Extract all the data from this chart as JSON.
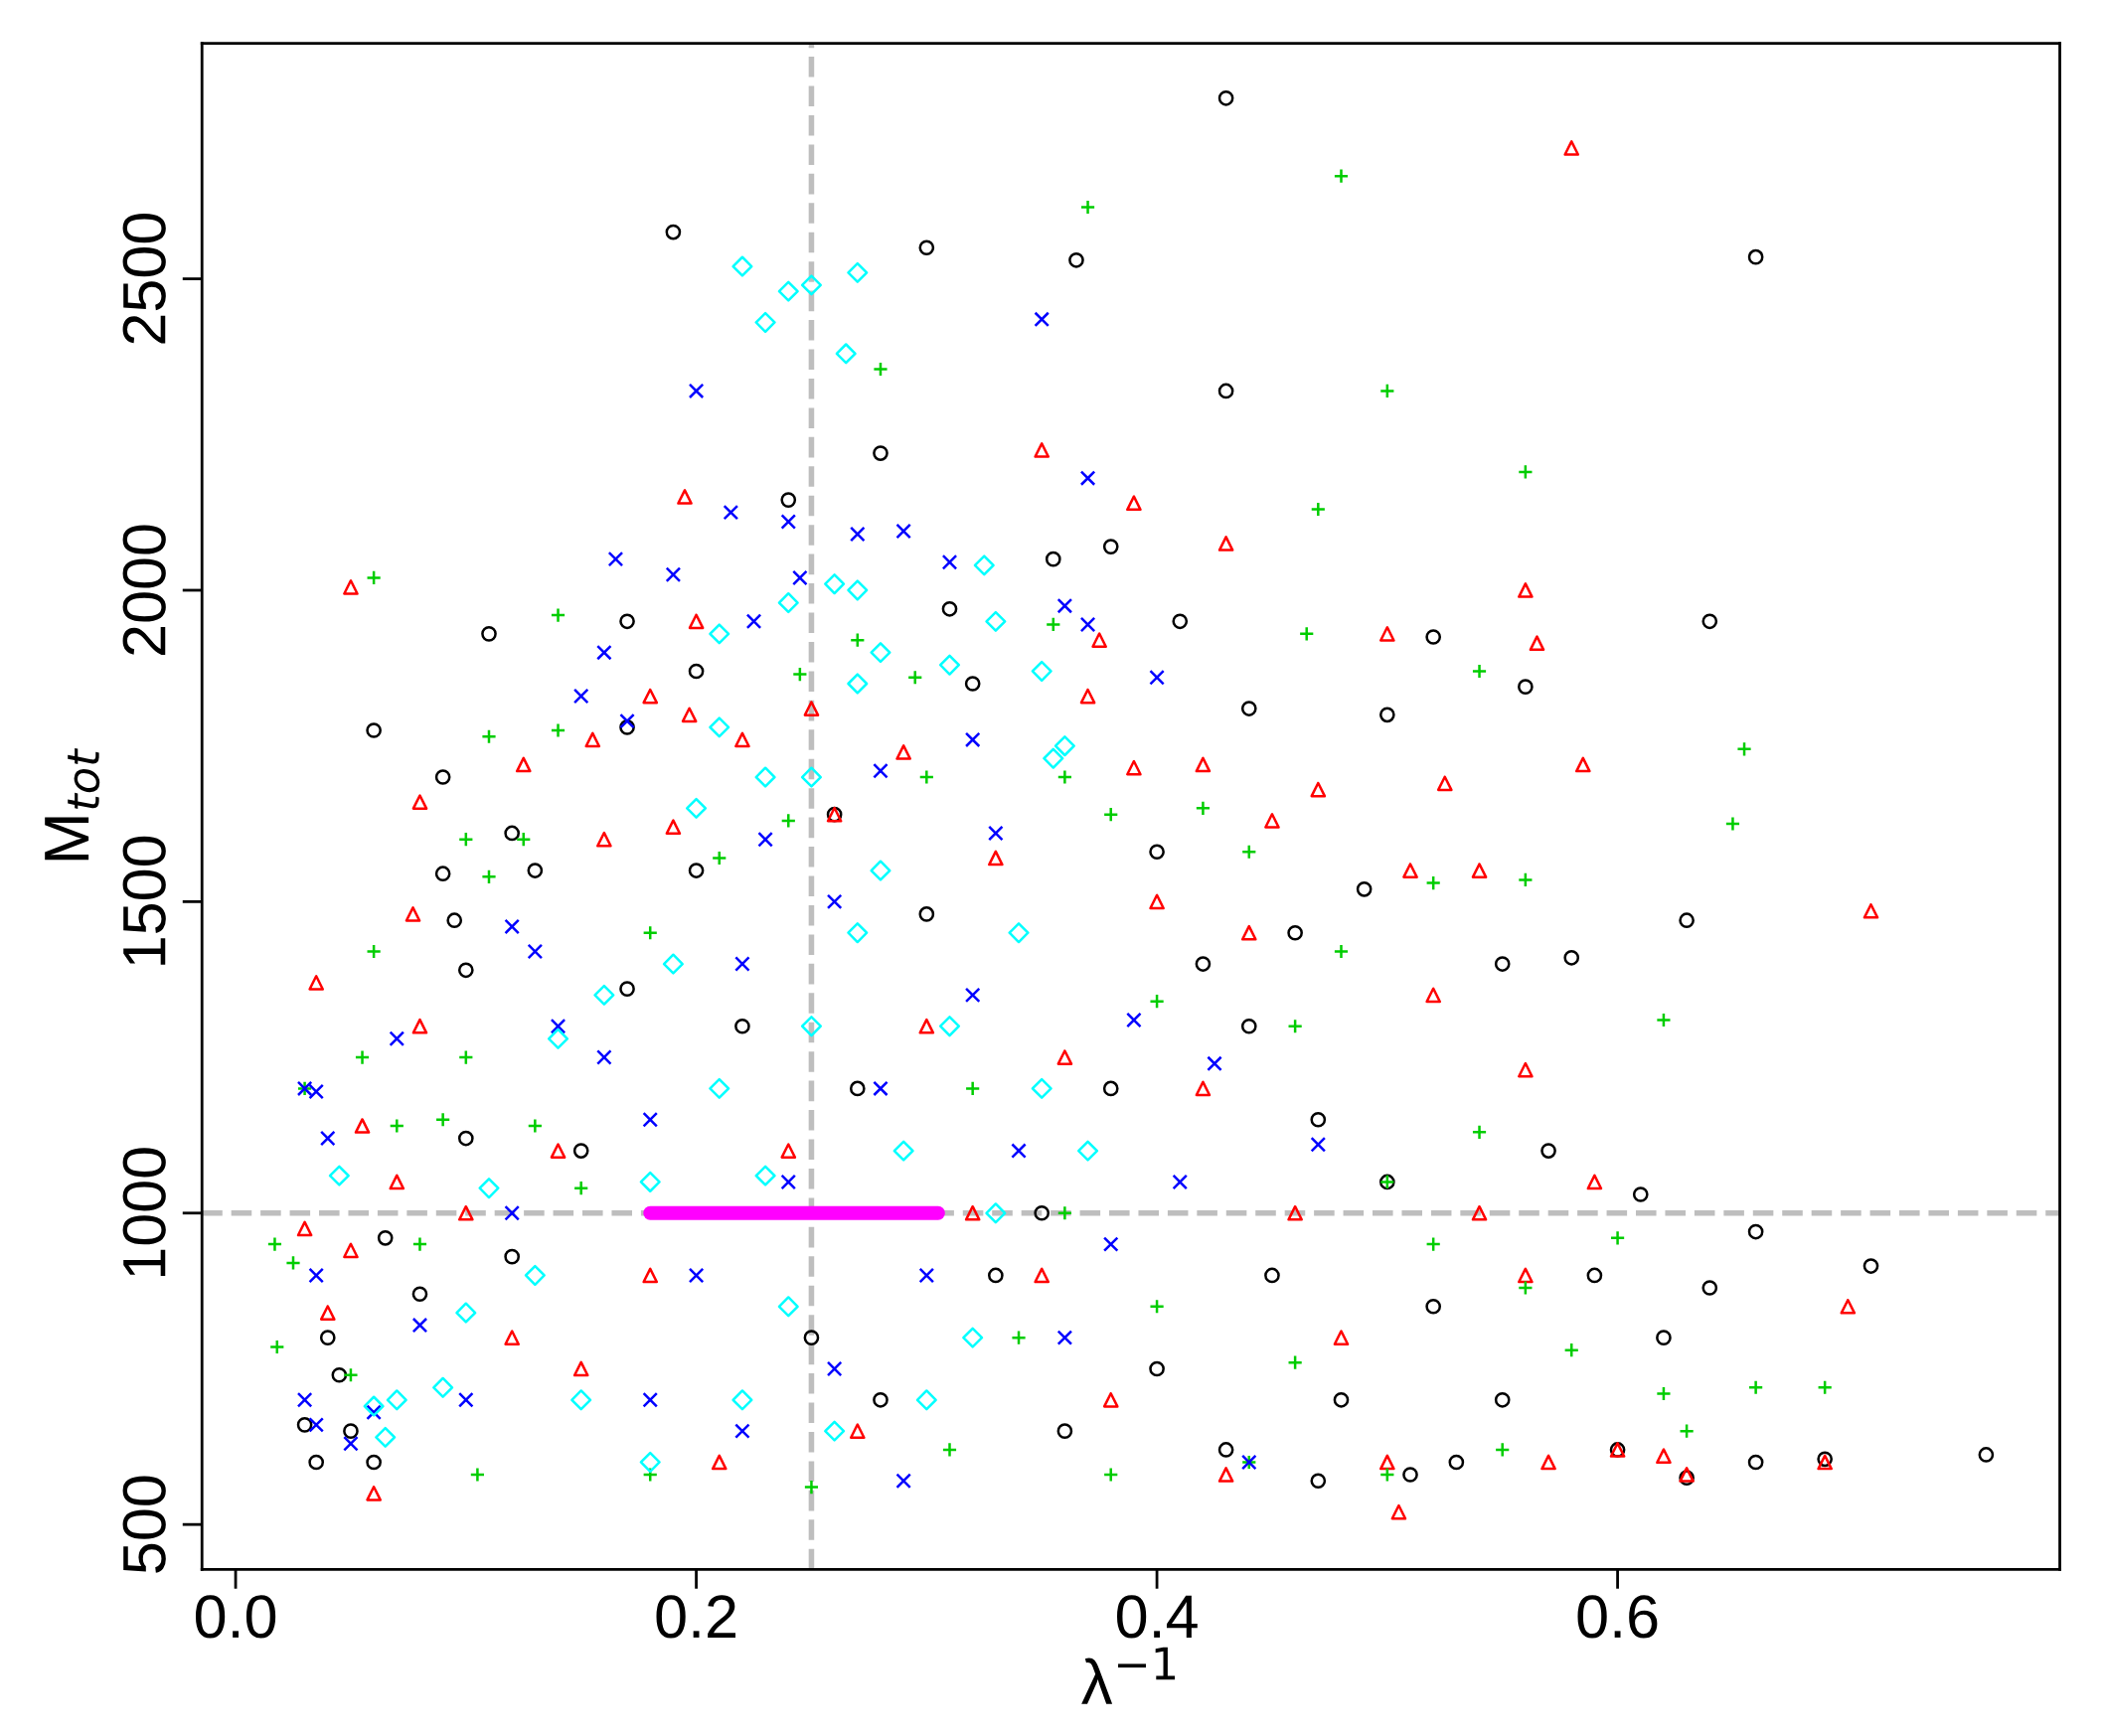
{
  "chart_data": {
    "type": "scatter",
    "xlabel": "λ$^{−1}$",
    "ylabel": "M$_{tot}$",
    "xlim": [
      -0.0146,
      0.792
    ],
    "ylim": [
      428,
      2878
    ],
    "xticks": [
      {
        "value": 0,
        "label": "0.0"
      },
      0.2,
      0.4,
      0.6
    ],
    "yticks": [
      500,
      1000,
      1500,
      2000,
      2500
    ],
    "grid": false,
    "legend": false,
    "ref_lines": [
      {
        "axis": "x",
        "value": 0.25,
        "color": "#bebebe",
        "line_style": "dashed"
      },
      {
        "axis": "y",
        "value": 1000,
        "color": "#bebebe",
        "line_style": "dashed"
      }
    ],
    "series": [
      {
        "color": "#000000",
        "marker": "circle",
        "x": [
          0.43,
          0.19,
          0.3,
          0.365,
          0.66,
          0.43,
          0.28,
          0.24,
          0.355,
          0.38,
          0.11,
          0.17,
          0.06,
          0.41,
          0.52,
          0.64,
          0.56,
          0.44,
          0.5,
          0.09,
          0.09,
          0.095,
          0.1,
          0.12,
          0.13,
          0.2,
          0.2,
          0.17,
          0.03,
          0.035,
          0.05,
          0.04,
          0.045,
          0.06,
          0.065,
          0.08,
          0.1,
          0.12,
          0.15,
          0.17,
          0.22,
          0.25,
          0.27,
          0.28,
          0.3,
          0.33,
          0.35,
          0.38,
          0.4,
          0.42,
          0.44,
          0.45,
          0.47,
          0.48,
          0.5,
          0.52,
          0.53,
          0.55,
          0.57,
          0.58,
          0.59,
          0.61,
          0.62,
          0.63,
          0.64,
          0.66,
          0.66,
          0.69,
          0.71,
          0.76,
          0.36,
          0.4,
          0.43,
          0.47,
          0.51,
          0.55,
          0.6,
          0.63,
          0.32,
          0.31,
          0.26,
          0.49,
          0.46
        ],
        "values": [
          2790,
          2575,
          2550,
          2530,
          2535,
          2320,
          2220,
          2145,
          2050,
          2070,
          1930,
          1950,
          1775,
          1950,
          1925,
          1950,
          1845,
          1810,
          1800,
          1700,
          1545,
          1470,
          1390,
          1610,
          1550,
          1550,
          1870,
          1780,
          660,
          600,
          650,
          800,
          740,
          600,
          960,
          870,
          1120,
          930,
          1100,
          1360,
          1300,
          800,
          1200,
          700,
          1480,
          900,
          1000,
          1200,
          1580,
          1400,
          1300,
          900,
          1150,
          700,
          1050,
          850,
          600,
          1400,
          1100,
          1410,
          900,
          1030,
          800,
          1470,
          880,
          970,
          600,
          605,
          915,
          612,
          650,
          750,
          620,
          570,
          580,
          700,
          620,
          575,
          1850,
          1970,
          1640,
          1520,
          1450
        ]
      },
      {
        "color": "#ff0000",
        "marker": "triangle",
        "x": [
          0.58,
          0.35,
          0.39,
          0.43,
          0.195,
          0.05,
          0.2,
          0.18,
          0.197,
          0.125,
          0.155,
          0.08,
          0.077,
          0.035,
          0.56,
          0.565,
          0.5,
          0.375,
          0.37,
          0.39,
          0.42,
          0.45,
          0.47,
          0.525,
          0.585,
          0.54,
          0.71,
          0.51,
          0.06,
          0.05,
          0.03,
          0.04,
          0.055,
          0.07,
          0.08,
          0.1,
          0.12,
          0.14,
          0.16,
          0.19,
          0.22,
          0.25,
          0.26,
          0.29,
          0.32,
          0.35,
          0.38,
          0.4,
          0.42,
          0.44,
          0.46,
          0.48,
          0.5,
          0.505,
          0.52,
          0.54,
          0.56,
          0.57,
          0.59,
          0.6,
          0.62,
          0.63,
          0.7,
          0.69,
          0.56,
          0.43,
          0.36,
          0.33,
          0.27,
          0.21,
          0.18,
          0.15,
          0.24,
          0.3
        ],
        "values": [
          2710,
          2225,
          2140,
          2075,
          2150,
          2005,
          1950,
          1830,
          1800,
          1720,
          1760,
          1660,
          1480,
          1370,
          2000,
          1915,
          1930,
          1920,
          1830,
          1715,
          1720,
          1630,
          1680,
          1690,
          1720,
          1550,
          1485,
          1550,
          550,
          940,
          975,
          840,
          1140,
          1050,
          1300,
          1000,
          800,
          1100,
          1600,
          1620,
          1760,
          1810,
          1640,
          1740,
          1000,
          900,
          700,
          1500,
          1200,
          1450,
          1000,
          800,
          600,
          520,
          1350,
          1000,
          900,
          600,
          1050,
          620,
          610,
          580,
          850,
          600,
          1230,
          580,
          1250,
          1570,
          650,
          600,
          900,
          750,
          1100,
          1300
        ]
      },
      {
        "color": "#00cd00",
        "marker": "cross",
        "x": [
          0.48,
          0.37,
          0.28,
          0.5,
          0.56,
          0.47,
          0.06,
          0.14,
          0.355,
          0.465,
          0.54,
          0.245,
          0.295,
          0.11,
          0.14,
          0.1,
          0.125,
          0.11,
          0.06,
          0.655,
          0.65,
          0.62,
          0.56,
          0.52,
          0.017,
          0.025,
          0.018,
          0.03,
          0.055,
          0.07,
          0.09,
          0.1,
          0.105,
          0.05,
          0.08,
          0.13,
          0.15,
          0.18,
          0.21,
          0.24,
          0.27,
          0.3,
          0.32,
          0.34,
          0.36,
          0.38,
          0.4,
          0.42,
          0.44,
          0.46,
          0.48,
          0.5,
          0.52,
          0.54,
          0.56,
          0.58,
          0.6,
          0.62,
          0.63,
          0.66,
          0.69,
          0.44,
          0.38,
          0.31,
          0.25,
          0.18,
          0.36,
          0.4,
          0.46,
          0.5,
          0.55
        ],
        "values": [
          2665,
          2615,
          2355,
          2320,
          2190,
          2130,
          2020,
          1960,
          1945,
          1930,
          1870,
          1865,
          1860,
          1765,
          1775,
          1600,
          1600,
          1540,
          1420,
          1745,
          1625,
          1310,
          1535,
          1530,
          950,
          920,
          785,
          1200,
          1250,
          1140,
          1150,
          1250,
          580,
          740,
          950,
          1140,
          1040,
          1450,
          1570,
          1630,
          1920,
          1700,
          1200,
          800,
          1700,
          1640,
          1340,
          1650,
          1580,
          1300,
          1420,
          1050,
          950,
          1130,
          880,
          780,
          960,
          710,
          650,
          720,
          720,
          600,
          580,
          620,
          560,
          580,
          1000,
          850,
          760,
          580,
          620
        ]
      },
      {
        "color": "#0000ff",
        "marker": "x",
        "x": [
          0.35,
          0.2,
          0.37,
          0.215,
          0.24,
          0.27,
          0.29,
          0.31,
          0.165,
          0.19,
          0.245,
          0.36,
          0.16,
          0.225,
          0.37,
          0.4,
          0.15,
          0.17,
          0.32,
          0.28,
          0.03,
          0.035,
          0.04,
          0.035,
          0.03,
          0.035,
          0.07,
          0.12,
          0.13,
          0.47,
          0.425,
          0.41,
          0.39,
          0.44,
          0.29,
          0.05,
          0.06,
          0.08,
          0.1,
          0.12,
          0.14,
          0.16,
          0.18,
          0.2,
          0.22,
          0.24,
          0.26,
          0.28,
          0.3,
          0.32,
          0.34,
          0.36,
          0.38,
          0.18,
          0.22,
          0.26,
          0.33,
          0.23
        ],
        "values": [
          2435,
          2320,
          2180,
          2125,
          2110,
          2090,
          2095,
          2045,
          2050,
          2025,
          2020,
          1975,
          1900,
          1950,
          1945,
          1860,
          1830,
          1790,
          1760,
          1710,
          1200,
          1195,
          1120,
          900,
          700,
          660,
          1280,
          1460,
          1420,
          1110,
          1240,
          1050,
          1310,
          600,
          570,
          630,
          680,
          820,
          700,
          1000,
          1300,
          1250,
          1150,
          900,
          1400,
          1050,
          750,
          1200,
          900,
          1350,
          1100,
          800,
          950,
          700,
          650,
          1500,
          1610,
          1600
        ]
      },
      {
        "color": "#00ffff",
        "marker": "diamond",
        "x": [
          0.22,
          0.24,
          0.23,
          0.25,
          0.27,
          0.265,
          0.21,
          0.26,
          0.27,
          0.24,
          0.325,
          0.33,
          0.35,
          0.31,
          0.36,
          0.355,
          0.28,
          0.27,
          0.21,
          0.23,
          0.045,
          0.07,
          0.06,
          0.065,
          0.09,
          0.1,
          0.11,
          0.13,
          0.14,
          0.16,
          0.18,
          0.19,
          0.21,
          0.23,
          0.25,
          0.27,
          0.29,
          0.31,
          0.33,
          0.35,
          0.37,
          0.3,
          0.26,
          0.22,
          0.18,
          0.15,
          0.24,
          0.32,
          0.28,
          0.2,
          0.25,
          0.34
        ],
        "values": [
          2520,
          2480,
          2430,
          2490,
          2510,
          2380,
          1930,
          2010,
          2000,
          1980,
          2040,
          1950,
          1870,
          1880,
          1750,
          1730,
          1900,
          1850,
          1780,
          1700,
          1060,
          700,
          690,
          640,
          720,
          840,
          1040,
          900,
          1280,
          1350,
          1050,
          1400,
          1200,
          1060,
          1300,
          1450,
          1100,
          1300,
          1000,
          1200,
          1100,
          700,
          650,
          700,
          600,
          700,
          850,
          800,
          1550,
          1650,
          1700,
          1450
        ]
      },
      {
        "type": "line",
        "color": "#ff00ff",
        "marker": "none",
        "x": [
          0.18,
          0.305
        ],
        "values": [
          1000,
          1000
        ]
      }
    ]
  }
}
